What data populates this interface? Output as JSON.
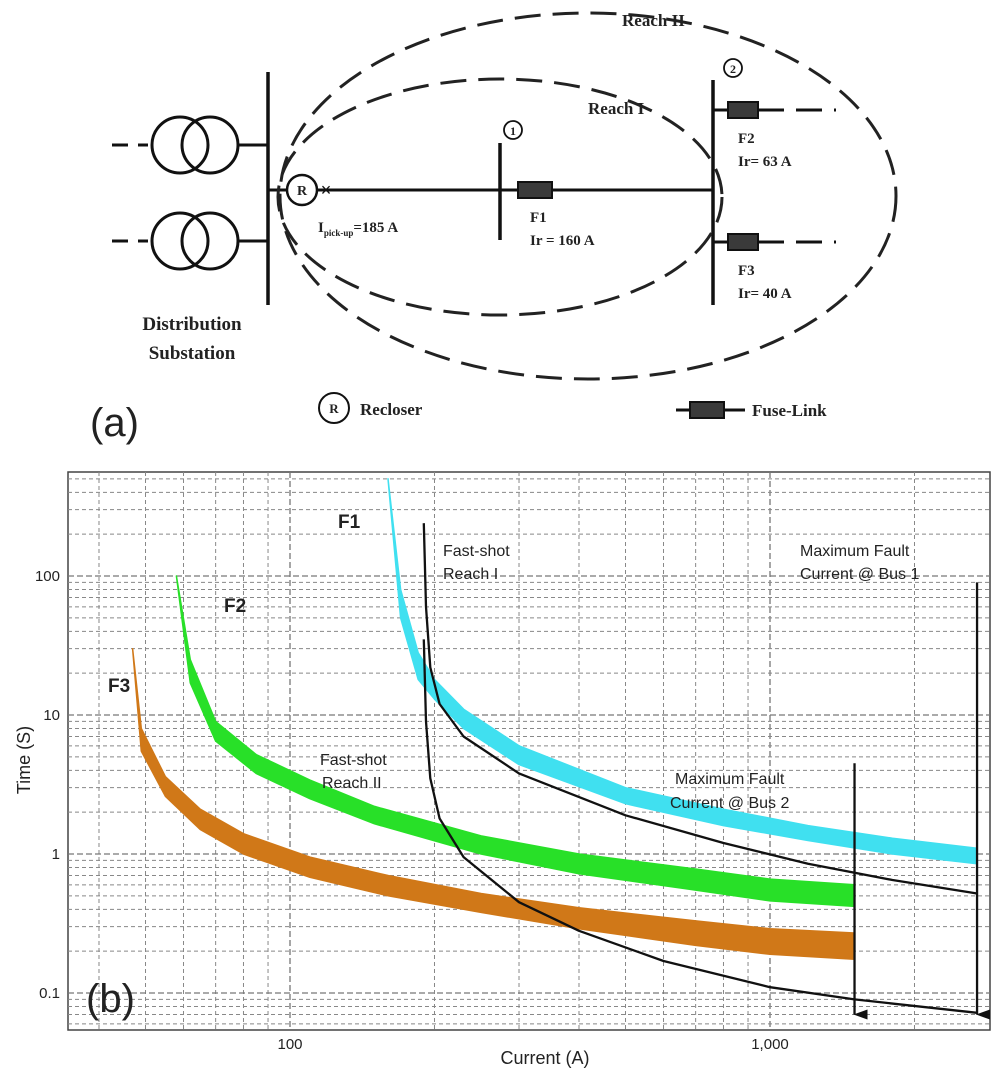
{
  "panel_a": {
    "panel_label": "(a)",
    "substation_label_line1": "Distribution",
    "substation_label_line2": "Substation",
    "reach_1": "Reach I",
    "reach_2": "Reach II",
    "bus_1": "1",
    "bus_2": "2",
    "recloser_symbol": "R",
    "pickup_label": {
      "prefix": "I",
      "subscript": "pick-up",
      "suffix": "=185 A"
    },
    "fuses": [
      {
        "name": "F1",
        "rating": "Ir = 160 A"
      },
      {
        "name": "F2",
        "rating": "Ir= 63 A"
      },
      {
        "name": "F3",
        "rating": "Ir= 40 A"
      }
    ],
    "legend_recloser": "Recloser",
    "legend_fuse": "Fuse-Link"
  },
  "panel_b": {
    "panel_label": "(b)",
    "xlabel": "Current (A)",
    "ylabel": "Time (S)",
    "x_tick_labels": [
      "100",
      "1,000"
    ],
    "y_tick_labels": [
      "0.1",
      "1",
      "10",
      "100"
    ],
    "annotations": {
      "f1": "F1",
      "f2": "F2",
      "f3": "F3",
      "fast_reach1_line1": "Fast-shot",
      "fast_reach1_line2": "Reach I",
      "fast_reach2_line1": "Fast-shot",
      "fast_reach2_line2": "Reach II",
      "bus2_line1": "Maximum Fault",
      "bus2_line2": "Current @ Bus 2",
      "bus1_line1": "Maximum Fault",
      "bus1_line2": "Current @ Bus 1"
    },
    "colors": {
      "F1": "#40e0f0",
      "F2": "#28e028",
      "F3": "#d07818",
      "recloser": "#111111"
    }
  },
  "chart_data": {
    "type": "line",
    "xlabel": "Current (A)",
    "ylabel": "Time (S)",
    "x_scale": "log",
    "y_scale": "log",
    "xlim": [
      45,
      2700
    ],
    "ylim": [
      0.06,
      600
    ],
    "grid": true,
    "series": [
      {
        "name": "F1",
        "kind": "band",
        "x": [
          160,
          170,
          185,
          200,
          230,
          300,
          500,
          800,
          1200,
          1800,
          2700
        ],
        "y_upper": [
          500,
          80,
          28,
          18,
          11,
          6,
          3,
          2.1,
          1.6,
          1.3,
          1.1
        ],
        "y_lower": [
          500,
          50,
          18,
          13,
          8,
          4.4,
          2.3,
          1.6,
          1.25,
          1.0,
          0.85
        ]
      },
      {
        "name": "F2",
        "kind": "band",
        "x": [
          58,
          62,
          70,
          85,
          110,
          150,
          250,
          400,
          700,
          1000,
          1500
        ],
        "y_upper": [
          100,
          25,
          9,
          5.2,
          3.4,
          2.2,
          1.35,
          1.0,
          0.78,
          0.66,
          0.6
        ],
        "y_lower": [
          100,
          17,
          6.5,
          3.8,
          2.5,
          1.65,
          1.0,
          0.72,
          0.55,
          0.46,
          0.42
        ]
      },
      {
        "name": "F3",
        "kind": "band",
        "x": [
          47,
          49,
          55,
          65,
          80,
          110,
          160,
          250,
          400,
          700,
          1000,
          1500
        ],
        "y_upper": [
          30,
          8,
          3.6,
          2.1,
          1.4,
          0.95,
          0.7,
          0.52,
          0.41,
          0.33,
          0.29,
          0.27
        ],
        "y_lower": [
          30,
          5.5,
          2.6,
          1.5,
          1.0,
          0.68,
          0.5,
          0.38,
          0.29,
          0.22,
          0.19,
          0.175
        ]
      },
      {
        "name": "Fast-shot Reach I",
        "kind": "line",
        "x": [
          190,
          192,
          196,
          205,
          230,
          300,
          500,
          800,
          1200,
          1800,
          2700
        ],
        "y": [
          240,
          60,
          22,
          12,
          7,
          3.8,
          1.9,
          1.2,
          0.85,
          0.65,
          0.52
        ]
      },
      {
        "name": "Fast-shot Reach II",
        "kind": "line",
        "x": [
          190,
          192,
          196,
          205,
          230,
          300,
          400,
          600,
          1000,
          1500,
          2700
        ],
        "y": [
          35,
          9,
          3.5,
          1.8,
          0.95,
          0.45,
          0.28,
          0.17,
          0.11,
          0.09,
          0.072
        ]
      }
    ],
    "markers": [
      {
        "label": "Maximum Fault Current @ Bus 2",
        "x": 1500,
        "y_from": 4.5,
        "y_to": 0.07
      },
      {
        "label": "Maximum Fault Current @ Bus 1",
        "x": 2700,
        "y_from": 90,
        "y_to": 0.07
      }
    ]
  }
}
